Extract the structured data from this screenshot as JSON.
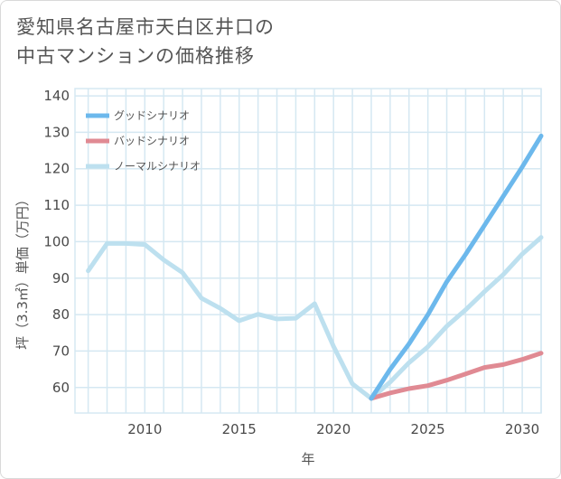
{
  "title_line1": "愛知県名古屋市天白区井口の",
  "title_line2": "中古マンションの価格推移",
  "chart_data": {
    "type": "line",
    "xlabel": "年",
    "ylabel": "坪（3.3㎡）単価（万円）",
    "xlim": [
      2006.3,
      2031
    ],
    "ylim": [
      53,
      142
    ],
    "x_ticks": [
      2010,
      2015,
      2020,
      2025,
      2030
    ],
    "y_ticks": [
      60,
      70,
      80,
      90,
      100,
      110,
      120,
      130,
      140
    ],
    "grid": true,
    "legend_position": "top-left",
    "series": [
      {
        "name": "グッドシナリオ",
        "color": "#6cb8ec",
        "x": [
          2022,
          2023,
          2024,
          2025,
          2026,
          2027,
          2028,
          2029,
          2030,
          2031
        ],
        "y": [
          57,
          65,
          72,
          80,
          89,
          96.5,
          104.5,
          112.5,
          120.5,
          129
        ]
      },
      {
        "name": "バッドシナリオ",
        "color": "#e08a93",
        "x": [
          2022,
          2023,
          2024,
          2025,
          2026,
          2027,
          2028,
          2029,
          2030,
          2031
        ],
        "y": [
          57,
          58.5,
          59.7,
          60.5,
          62,
          63.7,
          65.5,
          66.3,
          67.7,
          69.4
        ]
      },
      {
        "name": "ノーマルシナリオ",
        "color": "#bde0ef",
        "x": [
          2007,
          2008,
          2009,
          2010,
          2011,
          2012,
          2013,
          2014,
          2015,
          2016,
          2017,
          2018,
          2019,
          2020,
          2021,
          2022,
          2023,
          2024,
          2025,
          2026,
          2027,
          2028,
          2029,
          2030,
          2031
        ],
        "y": [
          92,
          99.5,
          99.5,
          99.2,
          95,
          91.5,
          84.5,
          81.7,
          78.3,
          80.1,
          78.8,
          79,
          83,
          71.3,
          61,
          57,
          61.5,
          66.8,
          71.2,
          76.8,
          81.3,
          86.3,
          91,
          96.6,
          101.2
        ]
      }
    ]
  }
}
